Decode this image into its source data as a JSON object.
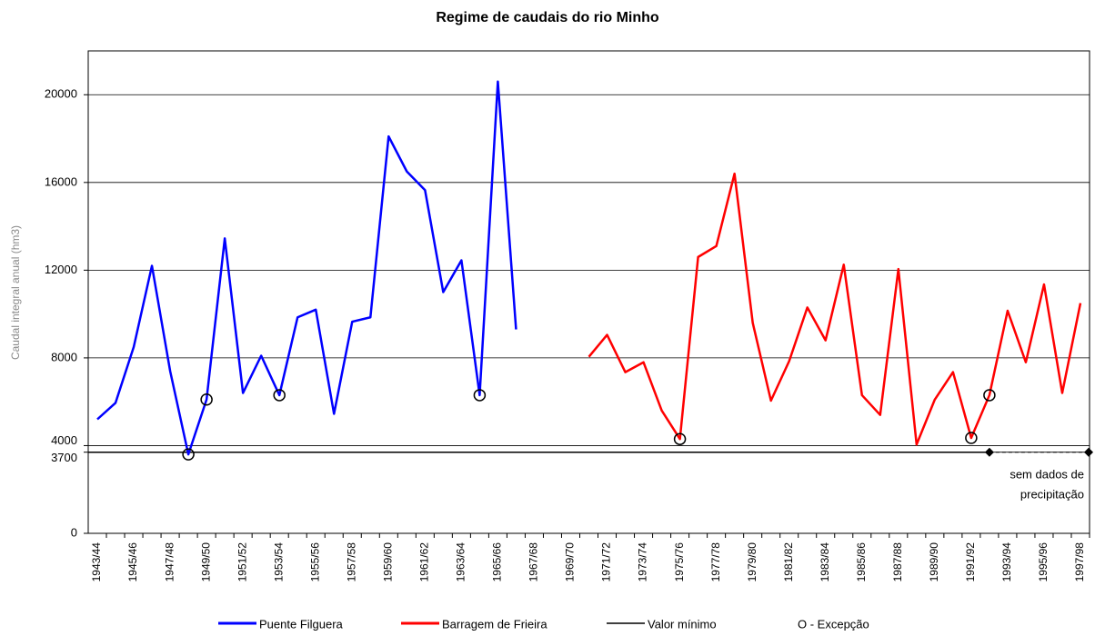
{
  "chart_data": {
    "type": "line",
    "title": "Regime de caudais do rio Minho",
    "y_label": "Caudal integral anual (hm3)",
    "categories": [
      "1943/44",
      null,
      "1945/46",
      null,
      "1947/48",
      null,
      "1949/50",
      null,
      "1951/52",
      null,
      "1953/54",
      null,
      "1955/56",
      null,
      "1957/58",
      null,
      "1959/60",
      null,
      "1961/62",
      null,
      "1963/64",
      null,
      "1965/66",
      null,
      "1967/68",
      null,
      "1969/70",
      null,
      "1971/72",
      null,
      "1973/74",
      null,
      "1975/76",
      null,
      "1977/78",
      null,
      "1979/80",
      null,
      "1981/82",
      null,
      "1983/84",
      null,
      "1985/86",
      null,
      "1987/88",
      null,
      "1989/90",
      null,
      "1991/92",
      null,
      "1993/94",
      null,
      "1995/96",
      null,
      "1997/98"
    ],
    "series": [
      {
        "name": "Puente Filguera",
        "color": "#0000ff",
        "values": [
          5200,
          5950,
          8500,
          12200,
          7400,
          3600,
          6100,
          13450,
          6400,
          8100,
          6300,
          9850,
          10200,
          5450,
          9650,
          9850,
          18100,
          16500,
          15650,
          11000,
          12450,
          6300,
          20600,
          9300,
          null,
          null,
          null,
          null,
          null,
          null,
          null,
          null,
          null,
          null,
          null,
          null,
          null,
          null,
          null,
          null,
          null,
          null,
          null,
          null,
          null,
          null,
          null,
          null,
          null,
          null,
          null,
          null,
          null,
          null,
          null
        ]
      },
      {
        "name": "Barragem de Frieira",
        "color": "#ff0000",
        "values": [
          null,
          null,
          null,
          null,
          null,
          null,
          null,
          null,
          null,
          null,
          null,
          null,
          null,
          null,
          null,
          null,
          null,
          null,
          null,
          null,
          null,
          null,
          null,
          null,
          null,
          null,
          null,
          8050,
          9050,
          7350,
          7800,
          5600,
          4300,
          12600,
          13100,
          16400,
          9600,
          6050,
          7850,
          10300,
          8800,
          12250,
          6300,
          5400,
          12050,
          4050,
          6100,
          7350,
          4350,
          6300,
          10150,
          7800,
          11350,
          6400,
          10500
        ]
      },
      {
        "name": "O - Excepção",
        "color": "#000000",
        "marker_only": true,
        "values": [
          null,
          null,
          null,
          null,
          null,
          3600,
          6100,
          null,
          null,
          null,
          6300,
          null,
          null,
          null,
          null,
          null,
          null,
          null,
          null,
          null,
          null,
          6300,
          null,
          null,
          null,
          null,
          null,
          null,
          null,
          null,
          null,
          null,
          4300,
          null,
          null,
          null,
          null,
          null,
          null,
          null,
          null,
          null,
          null,
          null,
          null,
          null,
          null,
          null,
          4350,
          6300,
          null,
          null,
          null,
          null,
          null
        ]
      }
    ],
    "min_line": {
      "name": "Valor mínimo",
      "value": 3700,
      "color": "#000000"
    },
    "annotation": [
      "sem dados de",
      "precipitação"
    ],
    "ylim": [
      0,
      22000
    ],
    "yticks": [
      0,
      3700,
      4000,
      8000,
      12000,
      16000,
      20000
    ],
    "grid": true
  }
}
